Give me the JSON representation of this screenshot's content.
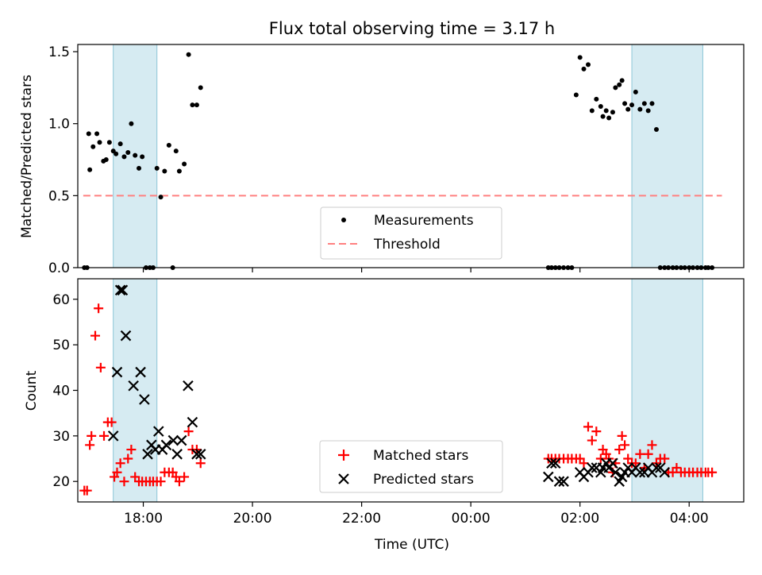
{
  "title": "Flux total observing time = 3.17 h",
  "chart_data": [
    {
      "type": "scatter",
      "ylabel": "Matched/Predicted stars",
      "xlim": [
        16.8,
        29.0
      ],
      "ylim": [
        0,
        1.55
      ],
      "yticks": [
        0.0,
        0.5,
        1.0,
        1.5
      ],
      "ytick_labels": [
        "0.0",
        "0.5",
        "1.0",
        "1.5"
      ],
      "x_ticks_unlabeled": [
        18,
        20,
        22,
        24,
        26,
        28
      ],
      "shaded_spans": [
        [
          17.45,
          18.25
        ],
        [
          26.95,
          28.25
        ]
      ],
      "threshold": {
        "name": "Threshold",
        "value": 0.5,
        "x_range": [
          16.9,
          28.6
        ],
        "color": "#ff8080"
      },
      "legend": {
        "position": "center-bottom",
        "entries": [
          "Measurements",
          "Threshold"
        ]
      },
      "series": [
        {
          "name": "Measurements",
          "color": "#000000",
          "x": [
            16.92,
            16.97,
            17.0,
            17.02,
            17.08,
            17.15,
            17.2,
            17.27,
            17.32,
            17.38,
            17.45,
            17.5,
            17.58,
            17.65,
            17.72,
            17.78,
            17.85,
            17.92,
            17.98,
            18.05,
            18.12,
            18.18,
            18.25,
            18.32,
            18.39,
            18.47,
            18.54,
            18.6,
            18.66,
            18.75,
            18.83,
            18.9,
            18.98,
            19.05,
            25.42,
            25.48,
            25.55,
            25.62,
            25.7,
            25.78,
            25.85,
            25.93,
            26.0,
            26.07,
            26.15,
            26.22,
            26.3,
            26.38,
            26.42,
            26.48,
            26.53,
            26.6,
            26.65,
            26.72,
            26.77,
            26.82,
            26.88,
            26.95,
            27.02,
            27.1,
            27.18,
            27.25,
            27.32,
            27.4,
            27.47,
            27.55,
            27.62,
            27.7,
            27.77,
            27.85,
            27.92,
            28.0,
            28.07,
            28.15,
            28.22,
            28.3,
            28.35,
            28.42
          ],
          "y": [
            0,
            0,
            0.93,
            0.68,
            0.84,
            0.93,
            0.87,
            0.74,
            0.75,
            0.87,
            0.81,
            0.79,
            0.86,
            0.77,
            0.8,
            1.0,
            0.78,
            0.69,
            0.77,
            0,
            0,
            0,
            0.69,
            0.49,
            0.67,
            0.85,
            0,
            0.81,
            0.67,
            0.72,
            1.48,
            1.13,
            1.13,
            1.25,
            0,
            0,
            0,
            0,
            0,
            0,
            0,
            1.2,
            1.46,
            1.38,
            1.41,
            1.09,
            1.17,
            1.12,
            1.05,
            1.09,
            1.04,
            1.08,
            1.25,
            1.27,
            1.3,
            1.14,
            1.1,
            1.13,
            1.22,
            1.1,
            1.14,
            1.09,
            1.14,
            0.96,
            0,
            0,
            0,
            0,
            0,
            0,
            0,
            0,
            0,
            0,
            0,
            0,
            0,
            0
          ]
        }
      ]
    },
    {
      "type": "scatter",
      "xlabel": "Time (UTC)",
      "ylabel": "Count",
      "xlim": [
        16.8,
        29.0
      ],
      "ylim": [
        15.5,
        64.5
      ],
      "yticks": [
        20,
        30,
        40,
        50,
        60
      ],
      "ytick_labels": [
        "20",
        "30",
        "40",
        "50",
        "60"
      ],
      "xticks": [
        18,
        20,
        22,
        24,
        26,
        28
      ],
      "xtick_labels": [
        "18:00",
        "20:00",
        "22:00",
        "00:00",
        "02:00",
        "04:00"
      ],
      "shaded_spans": [
        [
          17.45,
          18.25
        ],
        [
          26.95,
          28.25
        ]
      ],
      "legend": {
        "position": "center-bottom",
        "entries": [
          "Matched stars",
          "Predicted stars"
        ]
      },
      "series": [
        {
          "name": "Matched stars",
          "color": "#ff0000",
          "marker": "plus",
          "x": [
            16.92,
            16.97,
            17.02,
            17.05,
            17.12,
            17.18,
            17.22,
            17.28,
            17.35,
            17.42,
            17.47,
            17.52,
            17.58,
            17.65,
            17.72,
            17.78,
            17.85,
            17.92,
            17.98,
            18.05,
            18.12,
            18.18,
            18.25,
            18.32,
            18.39,
            18.47,
            18.54,
            18.6,
            18.66,
            18.75,
            18.83,
            18.9,
            18.98,
            19.05,
            25.42,
            25.48,
            25.55,
            25.62,
            25.7,
            25.78,
            25.85,
            25.93,
            26.0,
            26.07,
            26.15,
            26.22,
            26.3,
            26.38,
            26.42,
            26.48,
            26.53,
            26.6,
            26.65,
            26.72,
            26.77,
            26.82,
            26.88,
            26.95,
            27.02,
            27.1,
            27.18,
            27.25,
            27.32,
            27.4,
            27.47,
            27.55,
            27.62,
            27.7,
            27.77,
            27.85,
            27.92,
            28.0,
            28.07,
            28.15,
            28.22,
            28.3,
            28.35,
            28.42
          ],
          "y": [
            18,
            18,
            28,
            30,
            52,
            58,
            45,
            30,
            33,
            33,
            21,
            22,
            24,
            20,
            25,
            27,
            21,
            20,
            20,
            20,
            20,
            20,
            20,
            20,
            22,
            22,
            22,
            21,
            20,
            21,
            31,
            27,
            27,
            24,
            25,
            25,
            25,
            25,
            25,
            25,
            25,
            25,
            25,
            24,
            32,
            29,
            31,
            25,
            27,
            26,
            25,
            22,
            24,
            27,
            30,
            28,
            25,
            24,
            24,
            26,
            23,
            26,
            28,
            24,
            25,
            25,
            22,
            22,
            23,
            22,
            22,
            22,
            22,
            22,
            22,
            22,
            22,
            22
          ]
        },
        {
          "name": "Predicted stars",
          "color": "#000000",
          "marker": "x",
          "x": [
            17.45,
            17.52,
            17.58,
            17.62,
            17.68,
            17.82,
            17.95,
            18.02,
            18.08,
            18.15,
            18.22,
            18.28,
            18.35,
            18.42,
            18.55,
            18.62,
            18.7,
            18.82,
            18.9,
            18.98,
            19.05,
            25.42,
            25.48,
            25.55,
            25.62,
            25.7,
            26.0,
            26.07,
            26.15,
            26.22,
            26.3,
            26.38,
            26.42,
            26.48,
            26.53,
            26.6,
            26.65,
            26.72,
            26.77,
            26.82,
            26.88,
            26.95,
            27.02,
            27.1,
            27.18,
            27.25,
            27.32,
            27.4,
            27.47,
            27.55
          ],
          "y": [
            30,
            44,
            62,
            62,
            52,
            41,
            44,
            38,
            26,
            28,
            27,
            31,
            27,
            28,
            29,
            26,
            29,
            41,
            33,
            26,
            26,
            21,
            24,
            24,
            20,
            20,
            22,
            21,
            22,
            23,
            23,
            22,
            23,
            24,
            23,
            24,
            22,
            20,
            21,
            22,
            23,
            22,
            23,
            22,
            22,
            23,
            22,
            23,
            23,
            22
          ]
        }
      ]
    }
  ]
}
